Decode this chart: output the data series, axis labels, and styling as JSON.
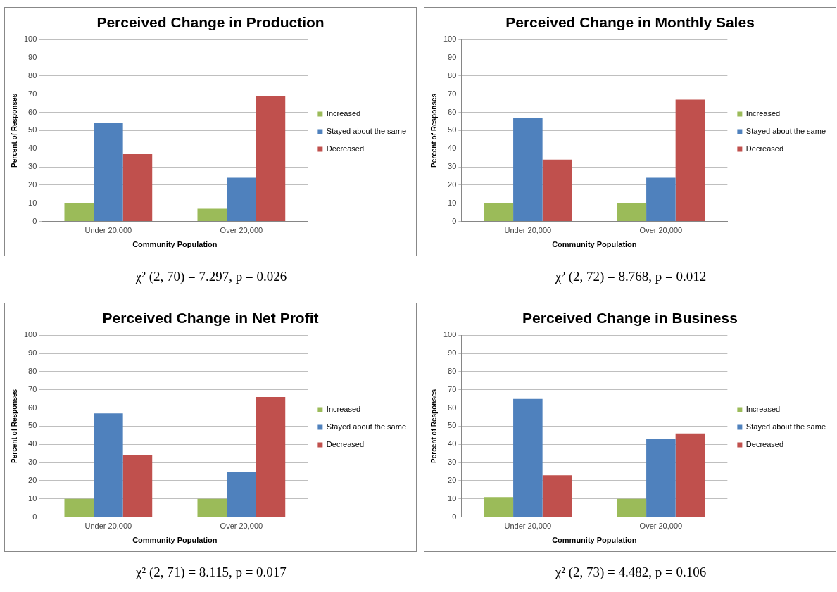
{
  "chart_data": [
    {
      "type": "bar",
      "title": "Perceived Change in Production",
      "xlabel": "Community Population",
      "ylabel": "Percent of Responses",
      "categories": [
        "Under 20,000",
        "Over 20,000"
      ],
      "ylim": [
        0,
        100
      ],
      "yticks": [
        0,
        10,
        20,
        30,
        40,
        50,
        60,
        70,
        80,
        90,
        100
      ],
      "grid": "y",
      "legend": "right",
      "annotations": [
        "χ² (2, 70) = 7.297, p = 0.026"
      ],
      "series": [
        {
          "name": "Increased",
          "color": "#9bbb59",
          "values": [
            10,
            7
          ]
        },
        {
          "name": "Stayed about the same",
          "color": "#4f81bd",
          "values": [
            54,
            24
          ]
        },
        {
          "name": "Decreased",
          "color": "#c0504d",
          "values": [
            37,
            69
          ]
        }
      ]
    },
    {
      "type": "bar",
      "title": "Perceived Change in Monthly Sales",
      "xlabel": "Community Population",
      "ylabel": "Percent of Responses",
      "categories": [
        "Under 20,000",
        "Over 20,000"
      ],
      "ylim": [
        0,
        100
      ],
      "yticks": [
        0,
        10,
        20,
        30,
        40,
        50,
        60,
        70,
        80,
        90,
        100
      ],
      "grid": "y",
      "legend": "right",
      "annotations": [
        "χ² (2, 72) = 8.768, p = 0.012"
      ],
      "series": [
        {
          "name": "Increased",
          "color": "#9bbb59",
          "values": [
            10,
            10
          ]
        },
        {
          "name": "Stayed about the same",
          "color": "#4f81bd",
          "values": [
            57,
            24
          ]
        },
        {
          "name": "Decreased",
          "color": "#c0504d",
          "values": [
            34,
            67
          ]
        }
      ]
    },
    {
      "type": "bar",
      "title": "Perceived Change in Net Profit",
      "xlabel": "Community Population",
      "ylabel": "Percent of Responses",
      "categories": [
        "Under 20,000",
        "Over 20,000"
      ],
      "ylim": [
        0,
        100
      ],
      "yticks": [
        0,
        10,
        20,
        30,
        40,
        50,
        60,
        70,
        80,
        90,
        100
      ],
      "grid": "y",
      "legend": "right",
      "annotations": [
        "χ² (2, 71) = 8.115, p = 0.017"
      ],
      "series": [
        {
          "name": "Increased",
          "color": "#9bbb59",
          "values": [
            10,
            10
          ]
        },
        {
          "name": "Stayed about the same",
          "color": "#4f81bd",
          "values": [
            57,
            25
          ]
        },
        {
          "name": "Decreased",
          "color": "#c0504d",
          "values": [
            34,
            66
          ]
        }
      ]
    },
    {
      "type": "bar",
      "title": "Perceived Change in Business",
      "xlabel": "Community Population",
      "ylabel": "Percent of Responses",
      "categories": [
        "Under 20,000",
        "Over 20,000"
      ],
      "ylim": [
        0,
        100
      ],
      "yticks": [
        0,
        10,
        20,
        30,
        40,
        50,
        60,
        70,
        80,
        90,
        100
      ],
      "grid": "y",
      "legend": "right",
      "annotations": [
        "χ² (2, 73) = 4.482, p = 0.106"
      ],
      "series": [
        {
          "name": "Increased",
          "color": "#9bbb59",
          "values": [
            11,
            10
          ]
        },
        {
          "name": "Stayed about the same",
          "color": "#4f81bd",
          "values": [
            65,
            43
          ]
        },
        {
          "name": "Decreased",
          "color": "#c0504d",
          "values": [
            23,
            46
          ]
        }
      ]
    }
  ]
}
